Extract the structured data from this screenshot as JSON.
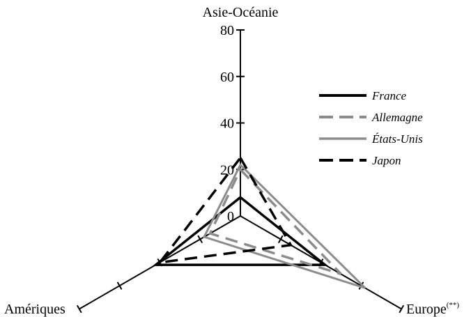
{
  "chart_data": {
    "type": "radar",
    "axes": [
      {
        "label": "Asie-Océanie",
        "suffix": ""
      },
      {
        "label": "Europe",
        "suffix": "(**)"
      },
      {
        "label": "Amériques",
        "suffix": ""
      }
    ],
    "rlim": [
      0,
      80
    ],
    "ticks": [
      "0",
      "20",
      "40",
      "60",
      "80"
    ],
    "tick_values": [
      0,
      20,
      40,
      60,
      80
    ],
    "grid": false,
    "legend_position": "right",
    "series": [
      {
        "name": "France",
        "values": [
          8,
          42,
          42
        ],
        "color": "#000000",
        "dash": "solid",
        "width": 3.5
      },
      {
        "name": "Allemagne",
        "values": [
          20,
          50,
          15
        ],
        "color": "#8c8c8c",
        "dash": "dashed",
        "width": 3.5
      },
      {
        "name": "États-Unis",
        "values": [
          22,
          62,
          18
        ],
        "color": "#8c8c8c",
        "dash": "solid",
        "width": 3
      },
      {
        "name": "Japon",
        "values": [
          25,
          25,
          40
        ],
        "color": "#000000",
        "dash": "dashed",
        "width": 3.5
      }
    ]
  }
}
